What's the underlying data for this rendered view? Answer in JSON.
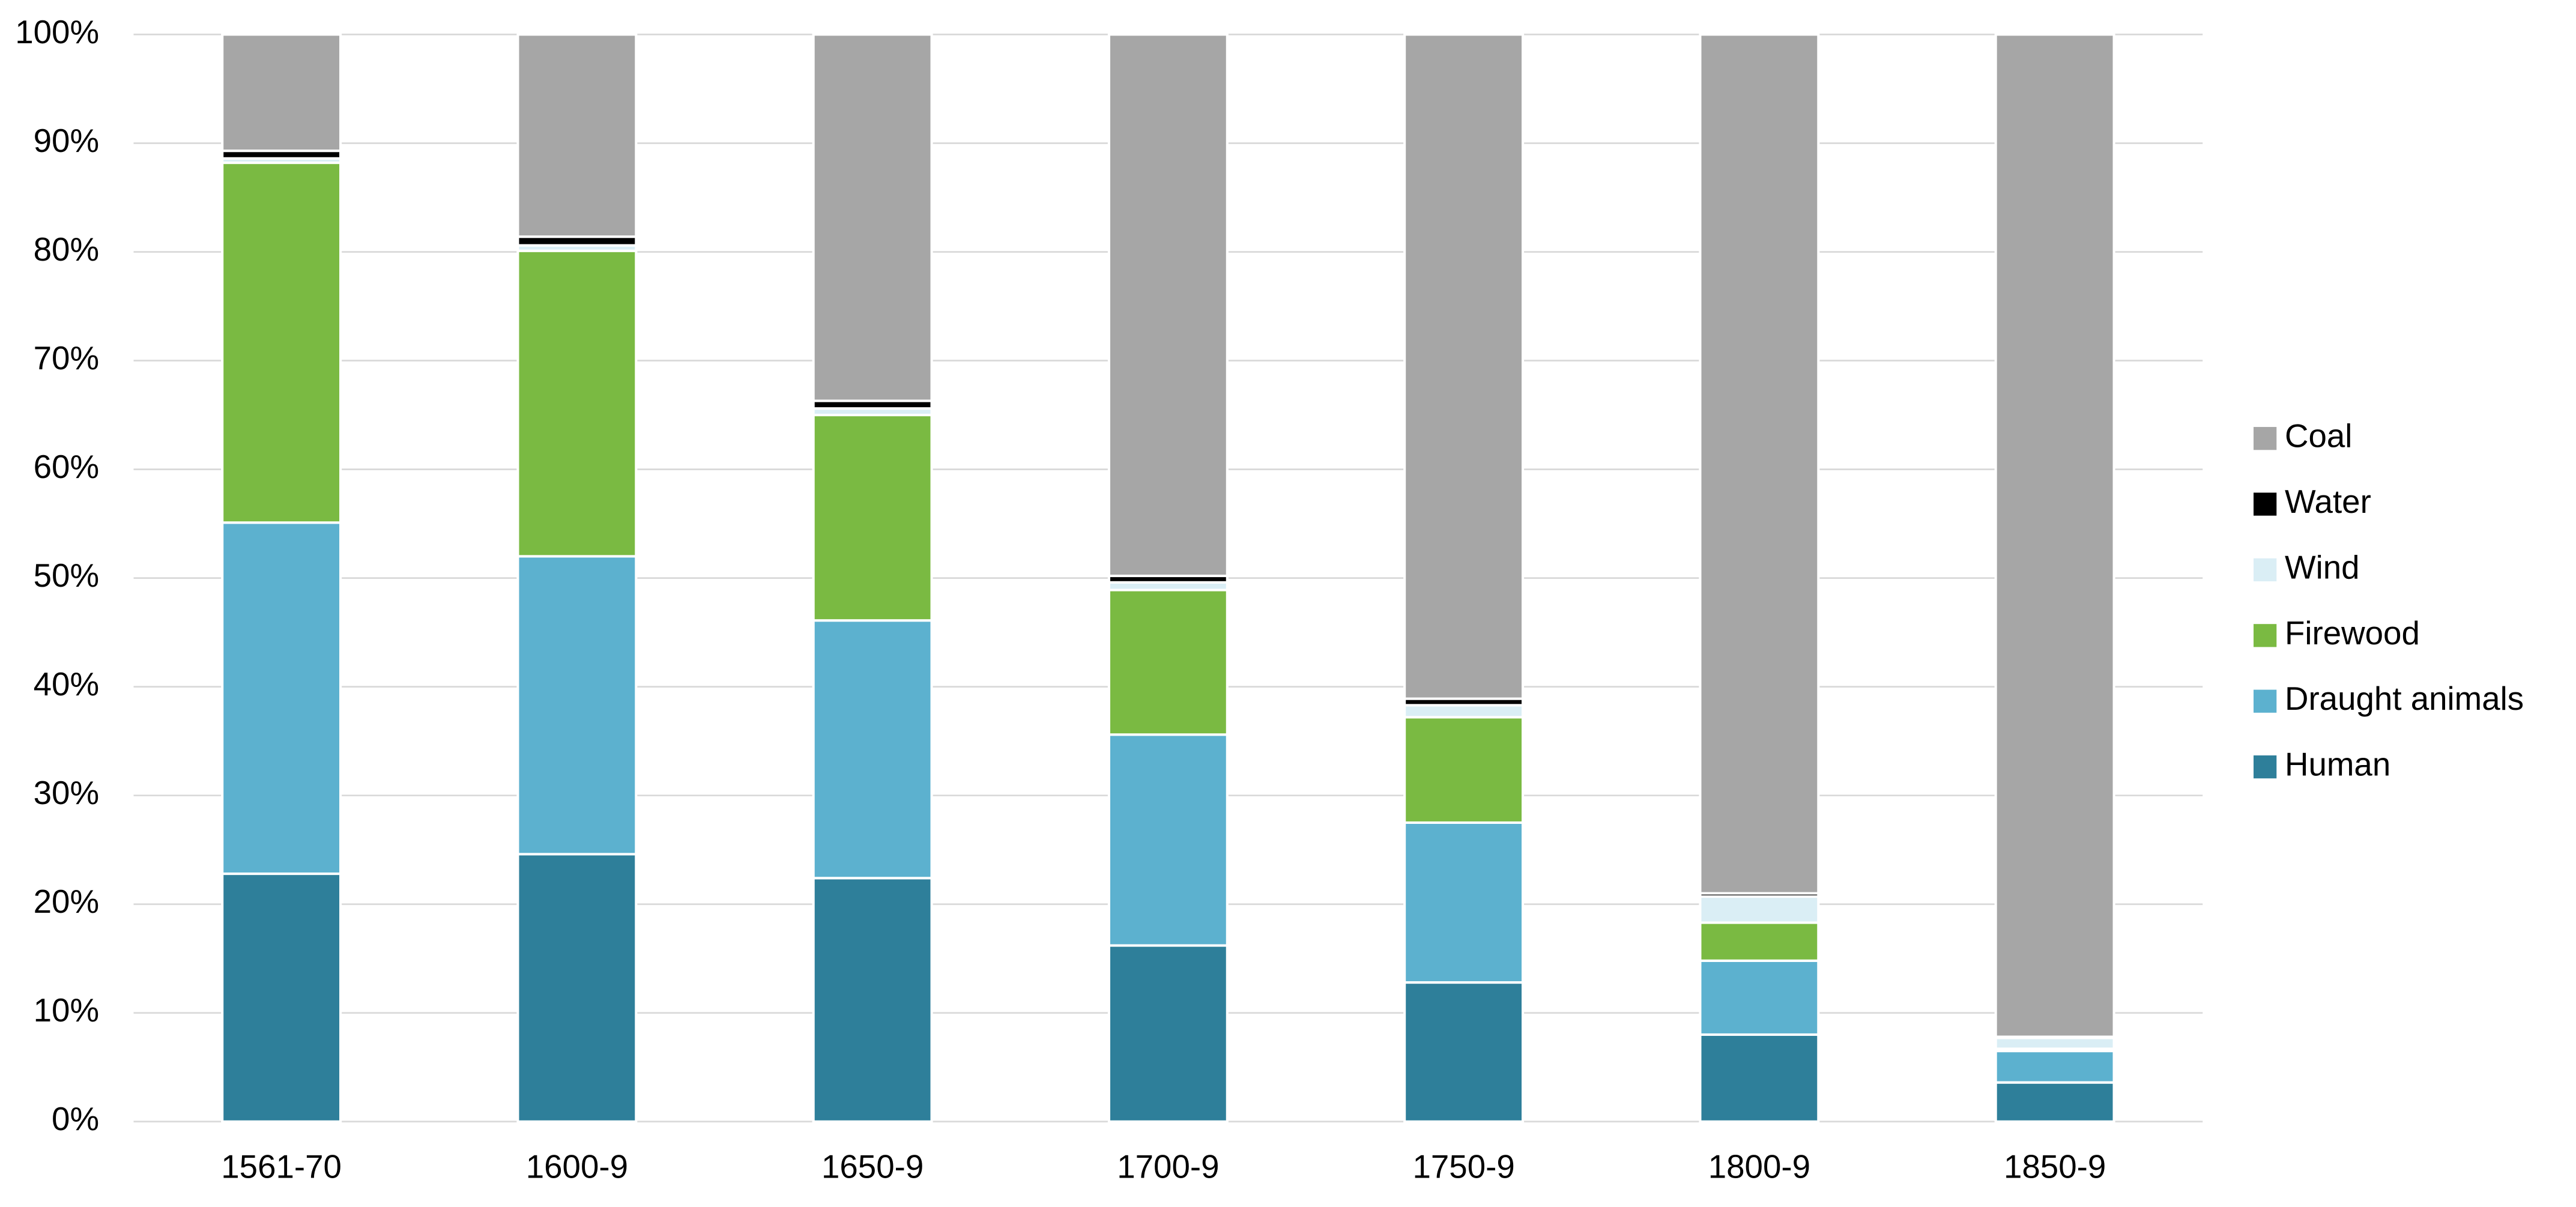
{
  "chart_data": {
    "type": "stacked_bar",
    "categories": [
      "1561-70",
      "1600-9",
      "1650-9",
      "1700-9",
      "1750-9",
      "1800-9",
      "1850-9"
    ],
    "series": [
      {
        "name": "Human",
        "color": "#2e7f9a",
        "values": [
          22.8,
          24.6,
          22.4,
          16.2,
          12.8,
          8.0,
          3.6
        ]
      },
      {
        "name": "Draught animals",
        "color": "#5cb1cf",
        "values": [
          32.3,
          27.4,
          23.7,
          19.4,
          14.7,
          6.8,
          2.9
        ]
      },
      {
        "name": "Firewood",
        "color": "#7aba42",
        "values": [
          33.1,
          28.1,
          18.9,
          13.3,
          9.7,
          3.5,
          0.2
        ]
      },
      {
        "name": "Wind",
        "color": "#daeef5",
        "values": [
          0.4,
          0.5,
          0.6,
          0.7,
          1.1,
          2.4,
          1.0
        ]
      },
      {
        "name": "Water",
        "color": "#000000",
        "values": [
          0.7,
          0.8,
          0.7,
          0.6,
          0.6,
          0.3,
          0.1
        ]
      },
      {
        "name": "Coal",
        "color": "#a6a6a6",
        "values": [
          10.7,
          18.6,
          33.7,
          49.8,
          61.1,
          79.0,
          92.2
        ]
      }
    ],
    "ylim": [
      0,
      100
    ],
    "yticks": [
      {
        "value": 0,
        "label": "0%"
      },
      {
        "value": 10,
        "label": "10%"
      },
      {
        "value": 20,
        "label": "20%"
      },
      {
        "value": 30,
        "label": "30%"
      },
      {
        "value": 40,
        "label": "40%"
      },
      {
        "value": 50,
        "label": "50%"
      },
      {
        "value": 60,
        "label": "60%"
      },
      {
        "value": 70,
        "label": "70%"
      },
      {
        "value": 80,
        "label": "80%"
      },
      {
        "value": 90,
        "label": "90%"
      },
      {
        "value": 100,
        "label": "100%"
      }
    ],
    "grid": true,
    "legend": "right"
  }
}
